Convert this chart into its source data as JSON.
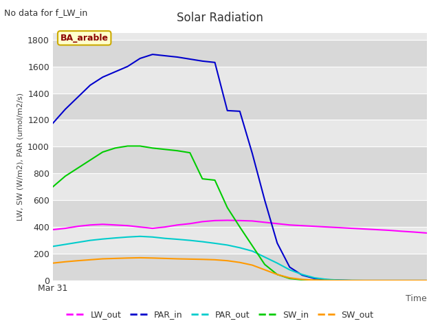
{
  "title": "Solar Radiation",
  "subtitle": "No data for f_LW_in",
  "xlabel": "Time",
  "ylabel": "LW, SW (W/m2), PAR (umol/m2/s)",
  "annotation_label": "BA_arable",
  "xlim": [
    0,
    30
  ],
  "ylim": [
    0,
    1850
  ],
  "x_tick_label": "Mar 31",
  "background_color": "#e0e0e0",
  "band_colors": [
    "#d8d8d8",
    "#e8e8e8"
  ],
  "series": {
    "LW_out": {
      "color": "#ff00ff",
      "x": [
        0,
        1,
        2,
        3,
        4,
        5,
        6,
        7,
        8,
        9,
        10,
        11,
        12,
        13,
        14,
        15,
        16,
        17,
        18,
        19,
        20,
        21,
        22,
        23,
        24,
        25,
        26,
        27,
        28,
        29,
        30
      ],
      "y": [
        380,
        390,
        405,
        415,
        420,
        415,
        410,
        400,
        390,
        400,
        415,
        425,
        440,
        448,
        450,
        448,
        445,
        435,
        425,
        415,
        410,
        405,
        400,
        395,
        390,
        385,
        380,
        375,
        368,
        362,
        355
      ]
    },
    "PAR_in": {
      "color": "#0000cc",
      "x": [
        0,
        1,
        2,
        3,
        4,
        5,
        6,
        7,
        8,
        9,
        10,
        11,
        12,
        13,
        14,
        15,
        16,
        17,
        18,
        19,
        20,
        21,
        22,
        23,
        24,
        25,
        26,
        27,
        28,
        29,
        30
      ],
      "y": [
        1175,
        1280,
        1370,
        1460,
        1520,
        1560,
        1600,
        1660,
        1690,
        1680,
        1670,
        1655,
        1640,
        1630,
        1270,
        1265,
        950,
        600,
        280,
        100,
        40,
        15,
        6,
        2,
        0,
        0,
        0,
        0,
        0,
        0,
        0
      ]
    },
    "PAR_out": {
      "color": "#00cccc",
      "x": [
        0,
        1,
        2,
        3,
        4,
        5,
        6,
        7,
        8,
        9,
        10,
        11,
        12,
        13,
        14,
        15,
        16,
        17,
        18,
        19,
        20,
        21,
        22,
        23,
        24,
        25,
        26,
        27,
        28,
        29,
        30
      ],
      "y": [
        255,
        270,
        285,
        300,
        310,
        318,
        325,
        330,
        325,
        315,
        308,
        300,
        290,
        278,
        265,
        245,
        220,
        175,
        130,
        80,
        45,
        20,
        8,
        3,
        1,
        0,
        0,
        0,
        0,
        0,
        0
      ]
    },
    "SW_in": {
      "color": "#00cc00",
      "x": [
        0,
        1,
        2,
        3,
        4,
        5,
        6,
        7,
        8,
        9,
        10,
        11,
        12,
        13,
        14,
        15,
        16,
        17,
        18,
        19,
        20,
        21,
        22,
        23,
        24,
        25,
        26,
        27,
        28,
        29,
        30
      ],
      "y": [
        700,
        780,
        840,
        900,
        960,
        990,
        1005,
        1005,
        990,
        980,
        970,
        955,
        760,
        750,
        545,
        400,
        260,
        120,
        45,
        15,
        5,
        2,
        0,
        0,
        0,
        0,
        0,
        0,
        0,
        0,
        0
      ]
    },
    "SW_out": {
      "color": "#ff9900",
      "x": [
        0,
        1,
        2,
        3,
        4,
        5,
        6,
        7,
        8,
        9,
        10,
        11,
        12,
        13,
        14,
        15,
        16,
        17,
        18,
        19,
        20,
        21,
        22,
        23,
        24,
        25,
        26,
        27,
        28,
        29,
        30
      ],
      "y": [
        130,
        140,
        148,
        155,
        162,
        165,
        168,
        170,
        168,
        165,
        162,
        160,
        158,
        155,
        148,
        135,
        115,
        80,
        45,
        20,
        8,
        3,
        1,
        0,
        0,
        0,
        0,
        0,
        0,
        0,
        0
      ]
    }
  }
}
